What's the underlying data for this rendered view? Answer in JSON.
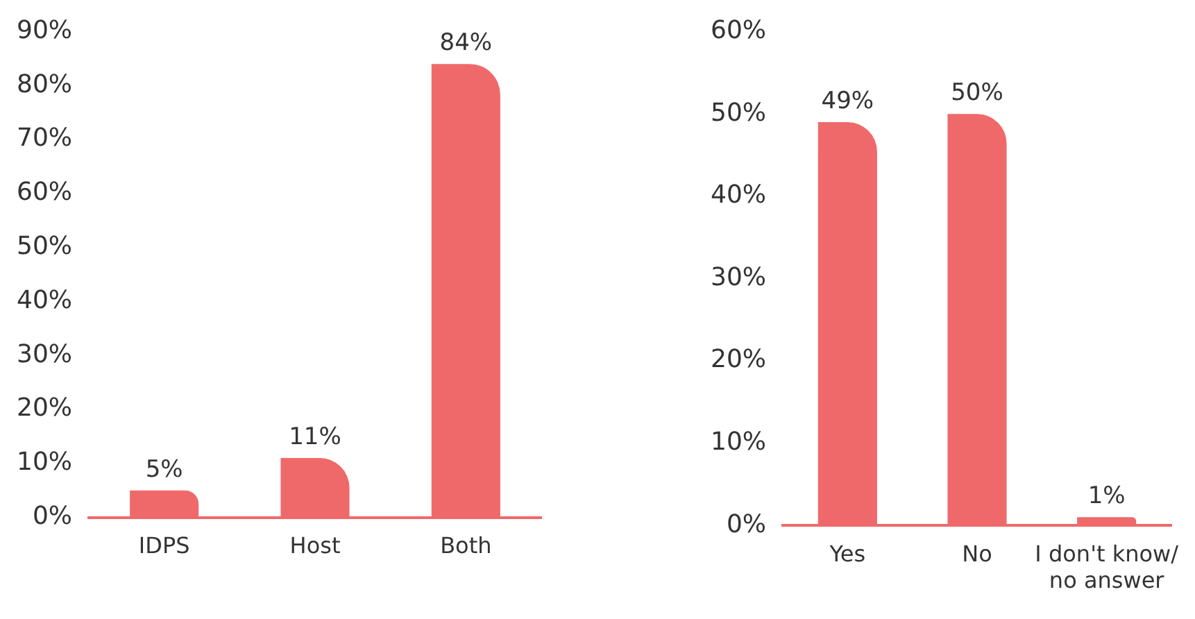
{
  "chart_data": [
    {
      "type": "bar",
      "categories": [
        "IDPS",
        "Host",
        "Both"
      ],
      "values": [
        5,
        11,
        84
      ],
      "color": "#f0696a",
      "value_labels": [
        "5%",
        "11%",
        "84%"
      ],
      "ylim": [
        0,
        90
      ],
      "yticks": [
        {
          "value": 0,
          "label": "0%"
        },
        {
          "value": 10,
          "label": "10%"
        },
        {
          "value": 20,
          "label": "20%"
        },
        {
          "value": 30,
          "label": "30%"
        },
        {
          "value": 40,
          "label": "40%"
        },
        {
          "value": 50,
          "label": "50%"
        },
        {
          "value": 60,
          "label": "60%"
        },
        {
          "value": 70,
          "label": "70%"
        },
        {
          "value": 80,
          "label": "80%"
        },
        {
          "value": 90,
          "label": "90%"
        }
      ],
      "grid": false,
      "legend": false
    },
    {
      "type": "bar",
      "categories": [
        "Yes",
        "No",
        "I don't know/\nno answer"
      ],
      "values": [
        49,
        50,
        1
      ],
      "color": "#f0696a",
      "value_labels": [
        "49%",
        "50%",
        "1%"
      ],
      "ylim": [
        0,
        60
      ],
      "yticks": [
        {
          "value": 0,
          "label": "0%"
        },
        {
          "value": 10,
          "label": "10%"
        },
        {
          "value": 20,
          "label": "20%"
        },
        {
          "value": 30,
          "label": "30%"
        },
        {
          "value": 40,
          "label": "40%"
        },
        {
          "value": 50,
          "label": "50%"
        },
        {
          "value": 60,
          "label": "60%"
        }
      ],
      "grid": false,
      "legend": false
    }
  ]
}
